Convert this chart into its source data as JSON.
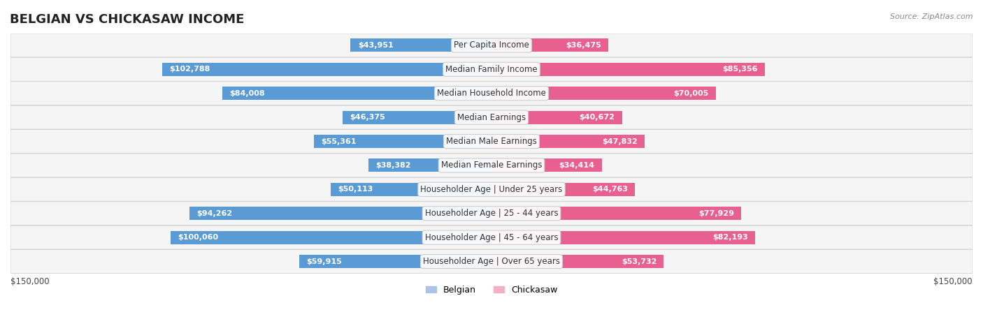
{
  "title": "BELGIAN VS CHICKASAW INCOME",
  "source": "Source: ZipAtlas.com",
  "categories": [
    "Per Capita Income",
    "Median Family Income",
    "Median Household Income",
    "Median Earnings",
    "Median Male Earnings",
    "Median Female Earnings",
    "Householder Age | Under 25 years",
    "Householder Age | 25 - 44 years",
    "Householder Age | 45 - 64 years",
    "Householder Age | Over 65 years"
  ],
  "belgian_values": [
    43951,
    102788,
    84008,
    46375,
    55361,
    38382,
    50113,
    94262,
    100060,
    59915
  ],
  "chickasaw_values": [
    36475,
    85356,
    70005,
    40672,
    47832,
    34414,
    44763,
    77929,
    82193,
    53732
  ],
  "belgian_color_dark": "#5b9bd5",
  "belgian_color_light": "#aac4e8",
  "chickasaw_color_dark": "#e86090",
  "chickasaw_color_light": "#f4aec8",
  "belgian_label": "Belgian",
  "chickasaw_label": "Chickasaw",
  "max_value": 150000,
  "axis_label": "$150,000",
  "background_color": "#f5f5f5",
  "row_bg_color": "#f0f0f0",
  "title_fontsize": 13,
  "label_fontsize": 8.5,
  "value_fontsize": 8.0,
  "threshold_for_dark_label": 15000
}
